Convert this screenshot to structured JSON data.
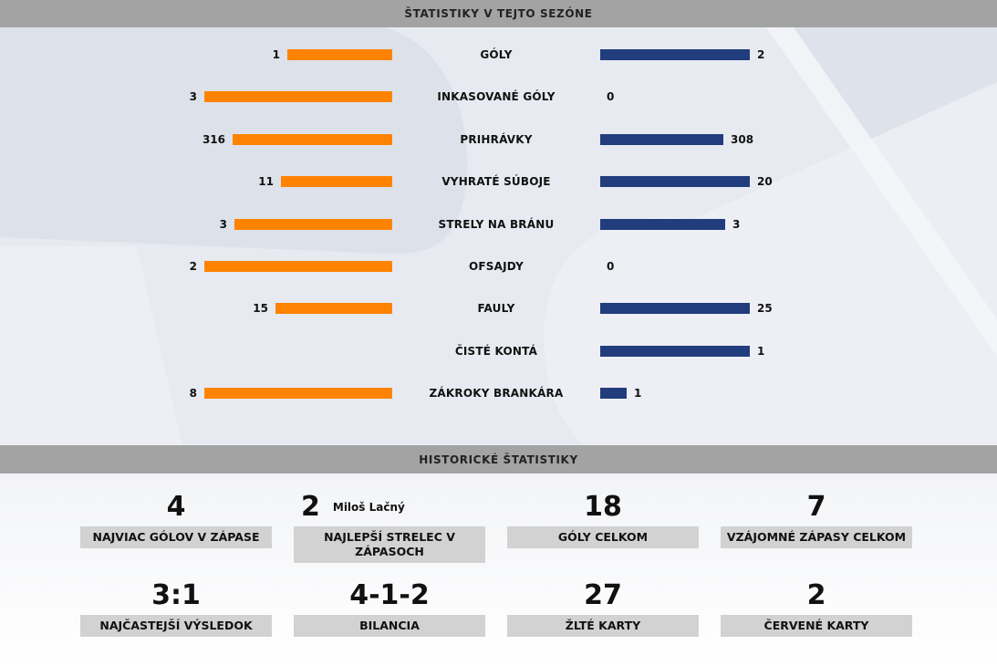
{
  "season": {
    "title": "ŠTATISTIKY V TEJTO SEZÓNE",
    "rows": [
      {
        "label": "GÓLY",
        "home": "1",
        "away": "2",
        "home_frac": 0.56,
        "away_frac": 0.8
      },
      {
        "label": "INKASOVANÉ GÓLY",
        "home": "3",
        "away": "0",
        "home_frac": 1.0,
        "away_frac": 0
      },
      {
        "label": "PRIHRÁVKY",
        "home": "316",
        "away": "308",
        "home_frac": 0.85,
        "away_frac": 0.66
      },
      {
        "label": "VYHRATÉ SÚBOJE",
        "home": "11",
        "away": "20",
        "home_frac": 0.59,
        "away_frac": 0.8
      },
      {
        "label": "STRELY NA BRÁNU",
        "home": "3",
        "away": "3",
        "home_frac": 0.84,
        "away_frac": 0.67
      },
      {
        "label": "OFSAJDY",
        "home": "2",
        "away": "0",
        "home_frac": 1.0,
        "away_frac": 0
      },
      {
        "label": "FAULY",
        "home": "15",
        "away": "25",
        "home_frac": 0.62,
        "away_frac": 0.8
      },
      {
        "label": "ČISTÉ KONTÁ",
        "home": "",
        "away": "1",
        "home_frac": 0,
        "away_frac": 0.8
      },
      {
        "label": "ZÁKROKY BRANKÁRA",
        "home": "8",
        "away": "1",
        "home_frac": 1.0,
        "away_frac": 0.14
      }
    ]
  },
  "history": {
    "title": "HISTORICKÉ ŠTATISTIKY",
    "tiles": [
      {
        "value": "4",
        "caption": "NAJVIAC GÓLOV V ZÁPASE"
      },
      {
        "value": "2",
        "player": "Miloš Lačný",
        "caption": "NAJLEPŠÍ STRELEC V ZÁPASOCH"
      },
      {
        "value": "18",
        "caption": "GÓLY CELKOM"
      },
      {
        "value": "7",
        "caption": "VZÁJOMNÉ ZÁPASY CELKOM"
      },
      {
        "value": "3:1",
        "caption": "NAJČASTEJŠÍ VÝSLEDOK"
      },
      {
        "value": "4-1-2",
        "caption": "BILANCIA"
      },
      {
        "value": "27",
        "caption": "ŽLTÉ KARTY"
      },
      {
        "value": "2",
        "caption": "ČERVENÉ KARTY"
      }
    ]
  },
  "colors": {
    "home": "#ff8303",
    "away": "#213d7e"
  }
}
